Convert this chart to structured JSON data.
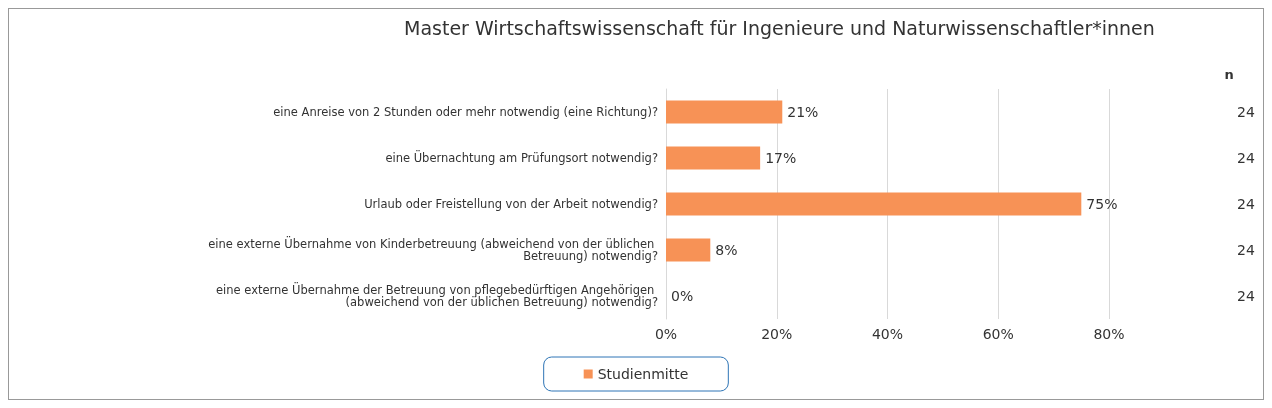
{
  "chart_data": {
    "type": "bar",
    "orientation": "horizontal",
    "title": "Master Wirtschaftswissenschaft für Ingenieure und Naturwissenschaftler*innen",
    "categories": [
      "eine Anreise von 2 Stunden oder mehr notwendig (eine Richtung)?",
      "eine Übernachtung am Prüfungsort notwendig?",
      "Urlaub oder Freistellung von der Arbeit notwendig?",
      "eine externe Übernahme von Kinderbetreuung (abweichend von der üblichen Betreuung) notwendig?",
      "eine externe Übernahme der Betreuung von pflegebedürftigen Angehörigen (abweichend von der üblichen Betreuung) notwendig?"
    ],
    "series": [
      {
        "name": "Studienmitte",
        "color": "#f79256",
        "values": [
          21,
          17,
          75,
          8,
          0
        ],
        "value_labels": [
          "21%",
          "17%",
          "75%",
          "8%",
          "0%"
        ]
      }
    ],
    "xlim": [
      0,
      80
    ],
    "xticks": [
      {
        "value": 0,
        "label": "0%"
      },
      {
        "value": 20,
        "label": "20%"
      },
      {
        "value": 40,
        "label": "40%"
      },
      {
        "value": 60,
        "label": "60%"
      },
      {
        "value": 80,
        "label": "80%"
      }
    ],
    "grid": "x",
    "legend": "bottom",
    "annotations": [
      "n",
      "24",
      "24",
      "24",
      "24",
      "24"
    ]
  }
}
